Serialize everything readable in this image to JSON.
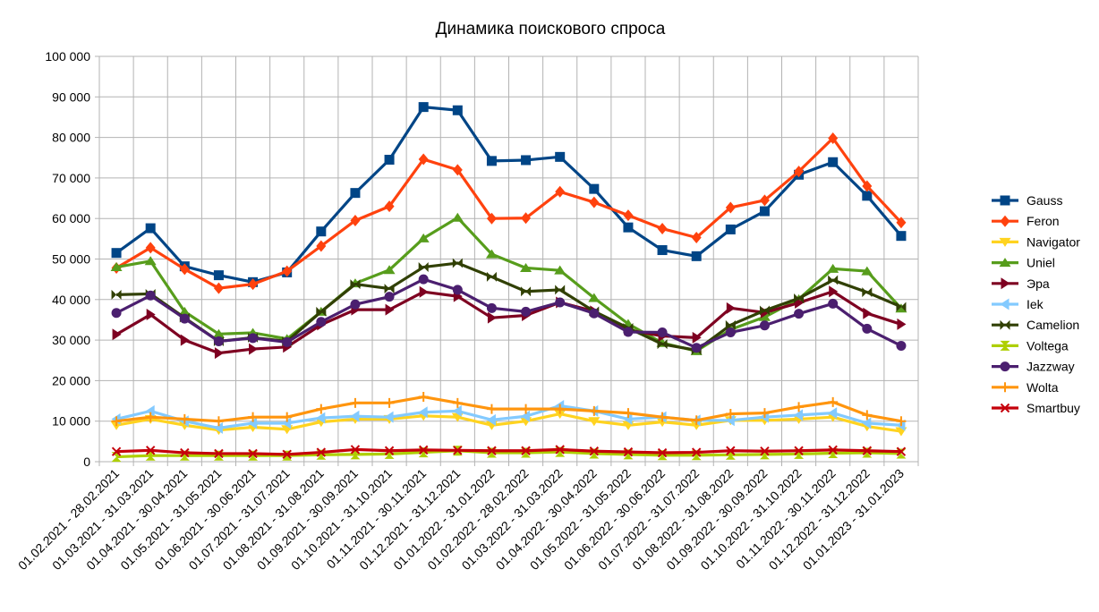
{
  "chart_data": {
    "type": "line",
    "title": "Динамика поискового спроса",
    "xlabel": "",
    "ylabel": "",
    "ylim": [
      0,
      100000
    ],
    "yticks": [
      0,
      10000,
      20000,
      30000,
      40000,
      50000,
      60000,
      70000,
      80000,
      90000,
      100000
    ],
    "ytick_labels": [
      "0",
      "10 000",
      "20 000",
      "30 000",
      "40 000",
      "50 000",
      "60 000",
      "70 000",
      "80 000",
      "90 000",
      "100 000"
    ],
    "grid": true,
    "legend_position": "right",
    "categories": [
      "01.02.2021 - 28.02.2021",
      "01.03.2021 - 31.03.2021",
      "01.04.2021 - 30.04.2021",
      "01.05.2021 - 31.05.2021",
      "01.06.2021 - 30.06.2021",
      "01.07.2021 - 31.07.2021",
      "01.08.2021 - 31.08.2021",
      "01.09.2021 - 30.09.2021",
      "01.10.2021 - 31.10.2021",
      "01.11.2021 - 30.11.2021",
      "01.12.2021 - 31.12.2021",
      "01.01.2022 - 31.01.2022",
      "01.02.2022 - 28.02.2022",
      "01.03.2022 - 31.03.2022",
      "01.04.2022 - 30.04.2022",
      "01.05.2022 - 31.05.2022",
      "01.06.2022 - 30.06.2022",
      "01.07.2022 - 31.07.2022",
      "01.08.2022 - 31.08.2022",
      "01.09.2022 - 30.09.2022",
      "01.10.2022 - 31.10.2022",
      "01.11.2022 - 30.11.2022",
      "01.12.2022 - 31.12.2022",
      "01.01.2023 - 31.01.2023"
    ],
    "series": [
      {
        "name": "Gauss",
        "color": "#004586",
        "marker": "square",
        "values": [
          51500,
          57600,
          48200,
          46000,
          44300,
          46700,
          56800,
          66300,
          74500,
          87500,
          86700,
          74200,
          74400,
          75200,
          67300,
          57800,
          52200,
          50700,
          57300,
          61800,
          70800,
          73900,
          65600,
          55700
        ]
      },
      {
        "name": "Feron",
        "color": "#ff420e",
        "marker": "diamond",
        "values": [
          47800,
          52800,
          47500,
          42800,
          43800,
          47000,
          53200,
          59500,
          63000,
          74600,
          72000,
          60000,
          60100,
          66600,
          64000,
          60800,
          57500,
          55300,
          62700,
          64500,
          71600,
          79800,
          68000,
          59000
        ]
      },
      {
        "name": "Navigator",
        "color": "#ffd320",
        "marker": "triangle-down",
        "values": [
          9000,
          10500,
          9000,
          7800,
          8500,
          8000,
          9800,
          10500,
          10500,
          11300,
          11000,
          9000,
          10000,
          11800,
          10000,
          9000,
          9800,
          9000,
          10200,
          10200,
          10500,
          11000,
          8700,
          7500
        ]
      },
      {
        "name": "Uniel",
        "color": "#579d1c",
        "marker": "triangle-up",
        "values": [
          48000,
          49500,
          37000,
          31500,
          31800,
          30300,
          37000,
          44000,
          47300,
          55100,
          60200,
          51200,
          47800,
          47200,
          40400,
          34000,
          29300,
          27300,
          32600,
          35700,
          40100,
          47600,
          47000,
          37800
        ]
      },
      {
        "name": "Эра",
        "color": "#7e0021",
        "marker": "triangle-right",
        "values": [
          31400,
          36300,
          30000,
          26800,
          27800,
          28300,
          33800,
          37500,
          37500,
          41900,
          40800,
          35500,
          36100,
          39300,
          37100,
          32500,
          31000,
          30600,
          37900,
          36800,
          39200,
          42000,
          36600,
          33900
        ]
      },
      {
        "name": "Iek",
        "color": "#83caff",
        "marker": "triangle-left",
        "values": [
          10500,
          12500,
          10000,
          8300,
          9500,
          9500,
          10800,
          11200,
          11000,
          12200,
          12500,
          10300,
          11200,
          13800,
          12500,
          10500,
          11000,
          10200,
          10200,
          11000,
          11500,
          12000,
          9500,
          9000
        ]
      },
      {
        "name": "Camelion",
        "color": "#314004",
        "marker": "bowtie",
        "values": [
          41200,
          41400,
          35500,
          29700,
          30600,
          29700,
          37000,
          43800,
          42700,
          48000,
          49000,
          45600,
          42000,
          42400,
          37100,
          33000,
          29000,
          27500,
          33700,
          37300,
          40300,
          44800,
          41800,
          38200
        ]
      },
      {
        "name": "Voltega",
        "color": "#aecf00",
        "marker": "hourglass",
        "values": [
          1200,
          1500,
          1500,
          1500,
          1500,
          1500,
          1700,
          1800,
          1900,
          2300,
          2700,
          2200,
          2200,
          2400,
          2000,
          1800,
          1600,
          1600,
          1700,
          1800,
          1900,
          2100,
          2200,
          2000
        ]
      },
      {
        "name": "Jazzway",
        "color": "#4b1f6f",
        "marker": "circle",
        "values": [
          36700,
          41000,
          35300,
          29700,
          30500,
          29500,
          34500,
          38800,
          40700,
          45000,
          42400,
          37900,
          37000,
          39300,
          36600,
          32000,
          31900,
          28100,
          31900,
          33600,
          36500,
          39000,
          32800,
          28600
        ]
      },
      {
        "name": "Wolta",
        "color": "#ff950e",
        "marker": "plus",
        "values": [
          10000,
          11000,
          10500,
          10000,
          11000,
          11000,
          13000,
          14500,
          14500,
          16000,
          14500,
          13000,
          13000,
          13000,
          12500,
          12000,
          11000,
          10200,
          11800,
          12000,
          13500,
          14700,
          11500,
          10000
        ]
      },
      {
        "name": "Smartbuy",
        "color": "#c5000b",
        "marker": "x",
        "values": [
          2500,
          2800,
          2200,
          2000,
          2000,
          1800,
          2300,
          3000,
          2700,
          2900,
          2800,
          2700,
          2700,
          3000,
          2600,
          2400,
          2200,
          2300,
          2700,
          2600,
          2700,
          2900,
          2700,
          2500
        ]
      }
    ]
  }
}
